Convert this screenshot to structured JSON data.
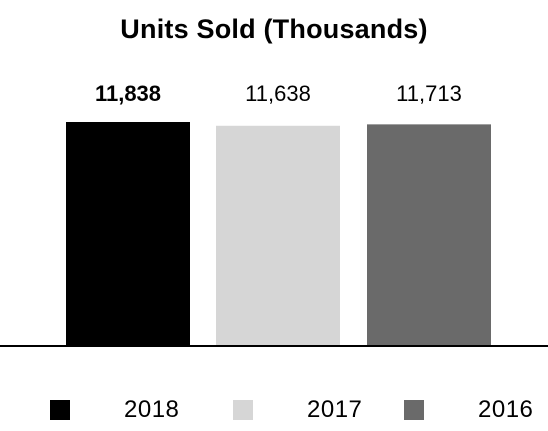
{
  "chart_data": {
    "type": "bar",
    "title": "Units Sold (Thousands)",
    "categories": [
      "2018",
      "2017",
      "2016"
    ],
    "values": [
      11838,
      11638,
      11713
    ],
    "value_labels": [
      "11,838",
      "11,638",
      "11,713"
    ],
    "colors": [
      "#000000",
      "#d6d6d6",
      "#6a6a6a"
    ],
    "xlabel": "",
    "ylabel": "",
    "legend": {
      "position": "bottom",
      "entries": [
        {
          "label": "2018",
          "color": "#000000"
        },
        {
          "label": "2017",
          "color": "#d6d6d6"
        },
        {
          "label": "2016",
          "color": "#6a6a6a"
        }
      ]
    },
    "grid": false
  }
}
